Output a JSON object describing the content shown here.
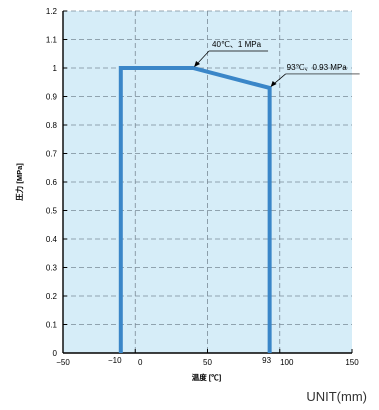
{
  "chart_data": {
    "type": "line",
    "xlabel": "温度 [℃]",
    "ylabel": "圧力 [MPa]",
    "xlim": [
      -50,
      150
    ],
    "ylim": [
      0,
      1.2
    ],
    "x_ticks": [
      "-50",
      "-10",
      "0",
      "50",
      "93",
      "100",
      "150"
    ],
    "x_tick_values": [
      -50,
      -10,
      0,
      50,
      93,
      100,
      150
    ],
    "y_ticks": [
      "0",
      "0.1",
      "0.2",
      "0.3",
      "0.4",
      "0.5",
      "0.6",
      "0.7",
      "0.8",
      "0.9",
      "1",
      "1.1",
      "1.2"
    ],
    "y_tick_values": [
      0,
      0.1,
      0.2,
      0.3,
      0.4,
      0.5,
      0.6,
      0.7,
      0.8,
      0.9,
      1.0,
      1.1,
      1.2
    ],
    "series": [
      {
        "x": [
          -10,
          -10,
          40,
          93,
          93
        ],
        "y": [
          0,
          1.0,
          1.0,
          0.93,
          0
        ]
      }
    ],
    "annotations": [
      {
        "text": "40℃、1 MPa",
        "x": 40,
        "y": 1.0
      },
      {
        "text": "93℃、0.93 MPa",
        "x": 93,
        "y": 0.93
      }
    ],
    "grid": true,
    "colors": {
      "background": "#d6edf8",
      "line": "#3a86c8",
      "grid": "#7a8a96"
    }
  },
  "footer": {
    "unit_label": "UNIT(mm)"
  }
}
